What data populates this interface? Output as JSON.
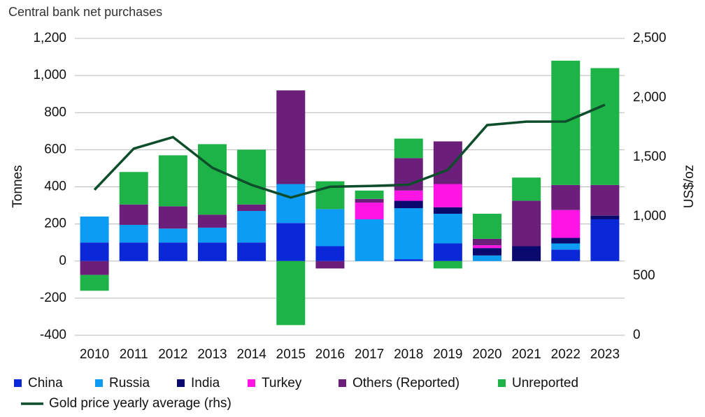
{
  "chart_data": {
    "type": "bar",
    "stacked": true,
    "title": "Central bank net purchases",
    "y_label": "Tonnes",
    "y2_label": "US$/oz",
    "categories": [
      "2010",
      "2011",
      "2012",
      "2013",
      "2014",
      "2015",
      "2016",
      "2017",
      "2018",
      "2019",
      "2020",
      "2021",
      "2022",
      "2023"
    ],
    "series": [
      {
        "name": "China",
        "color": "#0b28d8",
        "values": [
          100,
          100,
          100,
          100,
          100,
          205,
          80,
          0,
          10,
          95,
          0,
          0,
          62,
          225
        ]
      },
      {
        "name": "Russia",
        "color": "#0c9cf4",
        "values": [
          140,
          95,
          75,
          80,
          170,
          210,
          200,
          225,
          275,
          160,
          30,
          0,
          33,
          0
        ]
      },
      {
        "name": "India",
        "color": "#0a0a6e",
        "values": [
          0,
          0,
          0,
          0,
          0,
          0,
          0,
          0,
          40,
          35,
          40,
          80,
          30,
          20
        ]
      },
      {
        "name": "Turkey",
        "color": "#ff14e6",
        "values": [
          0,
          0,
          0,
          0,
          0,
          0,
          0,
          90,
          55,
          125,
          15,
          0,
          150,
          0
        ]
      },
      {
        "name": "Others (Reported)",
        "color": "#6b1f7a",
        "values": [
          -75,
          110,
          120,
          70,
          35,
          505,
          -40,
          20,
          175,
          230,
          35,
          245,
          135,
          165
        ]
      },
      {
        "name": "Unreported",
        "color": "#1db347",
        "values": [
          -85,
          175,
          275,
          380,
          295,
          -345,
          150,
          45,
          105,
          -40,
          135,
          125,
          670,
          630
        ]
      },
      {
        "name": "Gold price yearly average (rhs)",
        "type": "line",
        "axis": "y2",
        "color": "#0d4d2c",
        "values": [
          1225,
          1572,
          1669,
          1411,
          1266,
          1160,
          1251,
          1257,
          1268,
          1393,
          1770,
          1799,
          1800,
          1941
        ]
      }
    ],
    "ylim": [
      -400,
      1200
    ],
    "yticks": [
      -400,
      -200,
      0,
      200,
      400,
      600,
      800,
      {
        "value": 1000,
        "label": "1,000"
      },
      {
        "value": 1200,
        "label": "1,200"
      }
    ],
    "y2lim": [
      0,
      2500
    ],
    "y2ticks": [
      0,
      500,
      {
        "value": 1000,
        "label": "1,000"
      },
      {
        "value": 1500,
        "label": "1,500"
      },
      {
        "value": 2000,
        "label": "2,000"
      },
      {
        "value": 2500,
        "label": "2,500"
      }
    ],
    "grid": true,
    "legend": "bottom"
  }
}
